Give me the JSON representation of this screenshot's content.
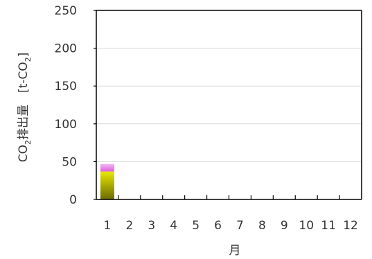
{
  "chart_data": {
    "type": "bar",
    "stacked": true,
    "title": "",
    "xlabel": "月",
    "ylabel_main": "CO",
    "ylabel_sub": "2",
    "ylabel_rest": "排出量　[t-CO",
    "ylabel_sub2": "2",
    "ylabel_close": "]",
    "ylim": [
      0,
      250
    ],
    "yticks": [
      0,
      50,
      100,
      150,
      200,
      250
    ],
    "categories": [
      "1",
      "2",
      "3",
      "4",
      "5",
      "6",
      "7",
      "8",
      "9",
      "10",
      "11",
      "12"
    ],
    "grid": true,
    "series": [
      {
        "values": [
          37,
          0,
          0,
          0,
          0,
          0,
          0,
          0,
          0,
          0,
          0,
          0
        ],
        "color_top": "#e8e800",
        "color_bottom": "#6b6b00"
      },
      {
        "values": [
          10,
          0,
          0,
          0,
          0,
          0,
          0,
          0,
          0,
          0,
          0,
          0
        ],
        "color_top": "#f0b8f0",
        "color_bottom": "#e060e0"
      }
    ]
  }
}
